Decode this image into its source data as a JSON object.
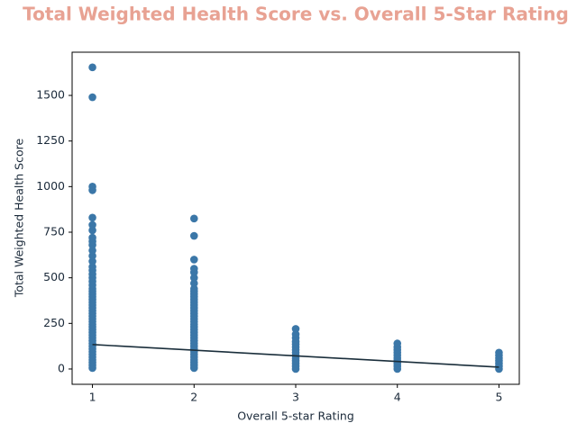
{
  "chart_data": {
    "type": "scatter",
    "title": "Total Weighted Health Score vs. Overall 5-Star Rating",
    "x_label": "Overall 5-star Rating",
    "y_label": "Total Weighted Health Score",
    "color": "#3b77a8",
    "x": [
      1,
      1,
      1,
      1,
      1,
      1,
      1,
      1,
      1,
      1,
      1,
      1,
      1,
      1,
      1,
      1,
      1,
      1,
      1,
      1,
      1,
      1,
      1,
      1,
      1,
      1,
      1,
      1,
      1,
      1,
      1,
      1,
      1,
      1,
      1,
      1,
      1,
      1,
      1,
      1,
      1,
      1,
      1,
      1,
      1,
      1,
      1,
      1,
      1,
      2,
      2,
      2,
      2,
      2,
      2,
      2,
      2,
      2,
      2,
      2,
      2,
      2,
      2,
      2,
      2,
      2,
      2,
      2,
      2,
      2,
      2,
      2,
      2,
      2,
      2,
      2,
      2,
      2,
      2,
      2,
      2,
      2,
      2,
      2,
      2,
      2,
      3,
      3,
      3,
      3,
      3,
      3,
      3,
      3,
      3,
      3,
      3,
      3,
      3,
      3,
      4,
      4,
      4,
      4,
      4,
      4,
      4,
      4,
      4,
      4,
      5,
      5,
      5,
      5,
      5,
      5,
      5
    ],
    "values": [
      5,
      20,
      35,
      50,
      65,
      80,
      95,
      110,
      125,
      140,
      155,
      170,
      185,
      200,
      215,
      230,
      245,
      260,
      275,
      290,
      305,
      320,
      335,
      350,
      365,
      380,
      395,
      410,
      425,
      440,
      460,
      480,
      500,
      520,
      540,
      560,
      590,
      620,
      650,
      680,
      700,
      720,
      760,
      790,
      830,
      980,
      1000,
      1490,
      1654,
      5,
      20,
      35,
      50,
      65,
      80,
      95,
      110,
      125,
      140,
      155,
      170,
      185,
      200,
      215,
      230,
      245,
      260,
      275,
      290,
      305,
      320,
      335,
      350,
      365,
      380,
      395,
      410,
      425,
      440,
      470,
      500,
      530,
      550,
      600,
      730,
      825,
      0,
      15,
      30,
      45,
      60,
      75,
      90,
      105,
      120,
      135,
      150,
      170,
      190,
      220,
      0,
      15,
      30,
      45,
      60,
      75,
      90,
      105,
      120,
      140,
      0,
      15,
      30,
      45,
      60,
      75,
      90
    ],
    "fit": {
      "x": [
        1,
        5
      ],
      "values": [
        134,
        10
      ],
      "color": "#1a2e3b"
    },
    "xlim": [
      0.8,
      5.2
    ],
    "xticks": [
      1,
      2,
      3,
      4,
      5
    ],
    "ylim": [
      -84,
      1737
    ],
    "yticks": [
      0,
      250,
      500,
      750,
      1000,
      1250,
      1500
    ]
  }
}
